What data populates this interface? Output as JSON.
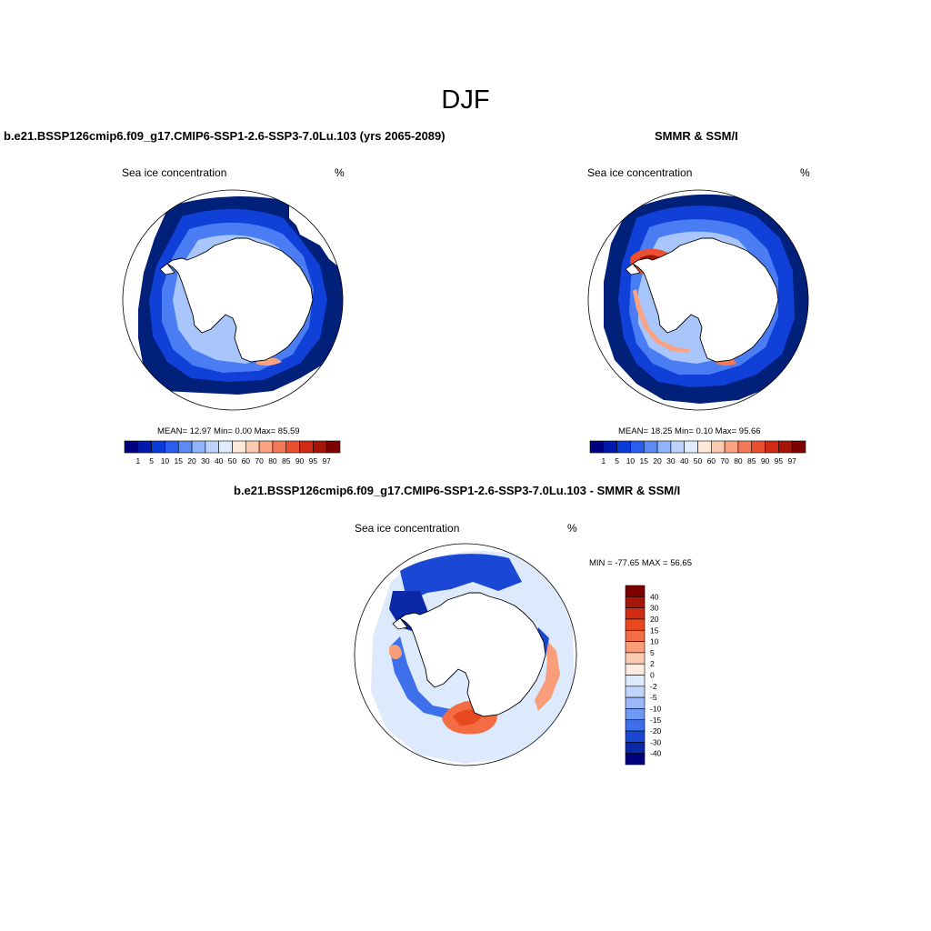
{
  "title": "DJF",
  "colors": {
    "continuous": [
      "#00007f",
      "#001ab0",
      "#0a3ad8",
      "#2a5cf0",
      "#5b8bf5",
      "#8fb4fa",
      "#bcd3fc",
      "#e0ecfe",
      "#fee8d8",
      "#fccab0",
      "#f9a383",
      "#f47a57",
      "#ea4f2f",
      "#d02a14",
      "#a51508",
      "#7c0000"
    ],
    "diff": [
      "#7c0000",
      "#a51508",
      "#cf2c11",
      "#e8491f",
      "#f36c44",
      "#f99d7b",
      "#fccab0",
      "#feeadf",
      "#dde9fd",
      "#bfd4fb",
      "#9ab8f7",
      "#6e98f2",
      "#3d70ea",
      "#1a48d4",
      "#0a28a8",
      "#00007f"
    ]
  },
  "panels": [
    {
      "title": "b.e21.BSSP126cmip6.f09_g17.CMIP6-SSP1-2.6-SSP3-7.0Lu.103 (yrs 2065-2089)",
      "left_label": "Sea ice concentration",
      "right_label": "%",
      "stats": "MEAN=  12.97  Min=   0.00  Max=  85.59",
      "labelbar": [
        "1",
        "5",
        "10",
        "15",
        "20",
        "30",
        "40",
        "50",
        "60",
        "70",
        "80",
        "85",
        "90",
        "95",
        "97"
      ]
    },
    {
      "title": "SMMR & SSM/I",
      "left_label": "Sea ice concentration",
      "right_label": "%",
      "stats": "MEAN=  18.25  Min=   0.10  Max=  95.66",
      "labelbar": [
        "1",
        "5",
        "10",
        "15",
        "20",
        "30",
        "40",
        "50",
        "60",
        "70",
        "80",
        "85",
        "90",
        "95",
        "97"
      ]
    },
    {
      "title": "b.e21.BSSP126cmip6.f09_g17.CMIP6-SSP1-2.6-SSP3-7.0Lu.103 - SMMR & SSM/I",
      "left_label": "Sea ice concentration",
      "right_label": "%",
      "stats": "MIN = -77.65 MAX =  56.65",
      "labelbar": [
        "40",
        "30",
        "20",
        "15",
        "10",
        "5",
        "2",
        "0",
        "-2",
        "-5",
        "-10",
        "-15",
        "-20",
        "-30",
        "-40"
      ]
    }
  ]
}
